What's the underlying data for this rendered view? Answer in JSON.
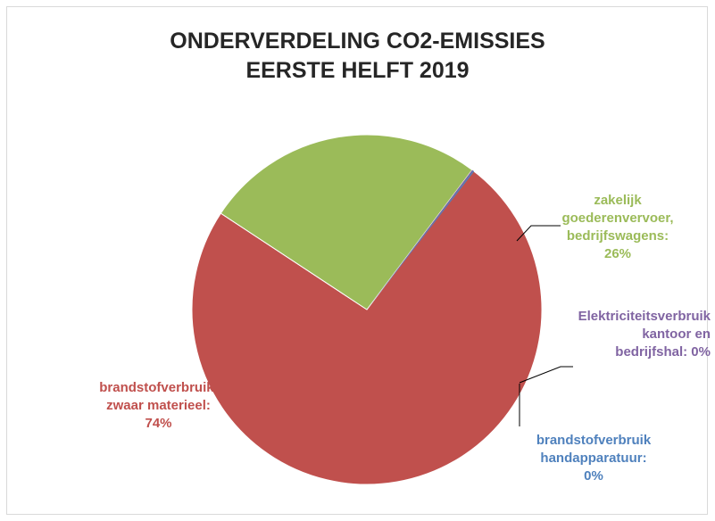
{
  "chart_data": {
    "type": "pie",
    "title_lines": [
      "ONDERVERDELING CO2-EMISSIES",
      "EERSTE HELFT 2019"
    ],
    "slices": [
      {
        "label_lines": [
          "brandstofverbruik,",
          "zwaar materieel:",
          "74%"
        ],
        "value": 74,
        "color": "#c0504d"
      },
      {
        "label_lines": [
          "zakelijk",
          "goederenvervoer,",
          "bedrijfswagens:",
          "26%"
        ],
        "value": 26,
        "color": "#9bbb59"
      },
      {
        "label_lines": [
          "Elektriciteitsverbruik",
          "kantoor en",
          "bedrijfshal: 0%"
        ],
        "value": 0,
        "color": "#8064a2"
      },
      {
        "label_lines": [
          "brandstofverbruik",
          "handapparatuur:",
          "0%"
        ],
        "value": 0,
        "color": "#4f81bd"
      }
    ]
  }
}
